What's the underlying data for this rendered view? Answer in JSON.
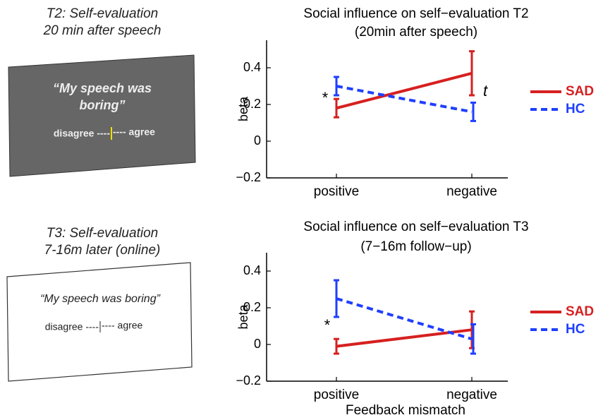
{
  "panels": [
    {
      "caption": [
        "T2: Self-evaluation",
        "20 min after speech"
      ],
      "quote": [
        "“My speech was",
        "boring”"
      ],
      "scale_left": "disagree ----",
      "scale_right": "---- agree"
    },
    {
      "caption": [
        "T3: Self-evaluation",
        "7-16m later (online)"
      ],
      "quote": [
        "“My speech was boring”"
      ],
      "scale_left": "disagree ----",
      "scale_right": "---- agree"
    }
  ],
  "chart_data": [
    {
      "type": "line",
      "title": "Social influence on self−evaluation T2",
      "subtitle": "(20min after speech)",
      "ylabel": "beta",
      "categories": [
        "positive",
        "negative"
      ],
      "ylim": [
        -0.2,
        0.55
      ],
      "yticks": [
        {
          "value": -0.2,
          "label": "−0.2"
        },
        0,
        0.2,
        0.4
      ],
      "legend": "right",
      "series": [
        {
          "name": "SAD",
          "color": "#d62020",
          "dash": false,
          "values": [
            0.18,
            0.37
          ],
          "errors": [
            0.05,
            0.12
          ]
        },
        {
          "name": "HC",
          "color": "#1f3fff",
          "dash": true,
          "values": [
            0.3,
            0.16
          ],
          "errors": [
            0.05,
            0.05
          ]
        }
      ],
      "annotations": [
        "*",
        "t"
      ]
    },
    {
      "type": "line",
      "title": "Social influence on self−evaluation T3",
      "subtitle": "(7−16m follow−up)",
      "ylabel": "beta",
      "xlabel": "Feedback mismatch",
      "categories": [
        "positive",
        "negative"
      ],
      "ylim": [
        -0.2,
        0.5
      ],
      "yticks": [
        {
          "value": -0.2,
          "label": "−0.2"
        },
        0,
        0.2,
        0.4
      ],
      "legend": "right",
      "series": [
        {
          "name": "SAD",
          "color": "#d62020",
          "dash": false,
          "values": [
            -0.01,
            0.08
          ],
          "errors": [
            0.04,
            0.1
          ]
        },
        {
          "name": "HC",
          "color": "#1f3fff",
          "dash": true,
          "values": [
            0.25,
            0.03
          ],
          "errors": [
            0.1,
            0.08
          ]
        }
      ],
      "annotations": [
        "*"
      ]
    }
  ]
}
